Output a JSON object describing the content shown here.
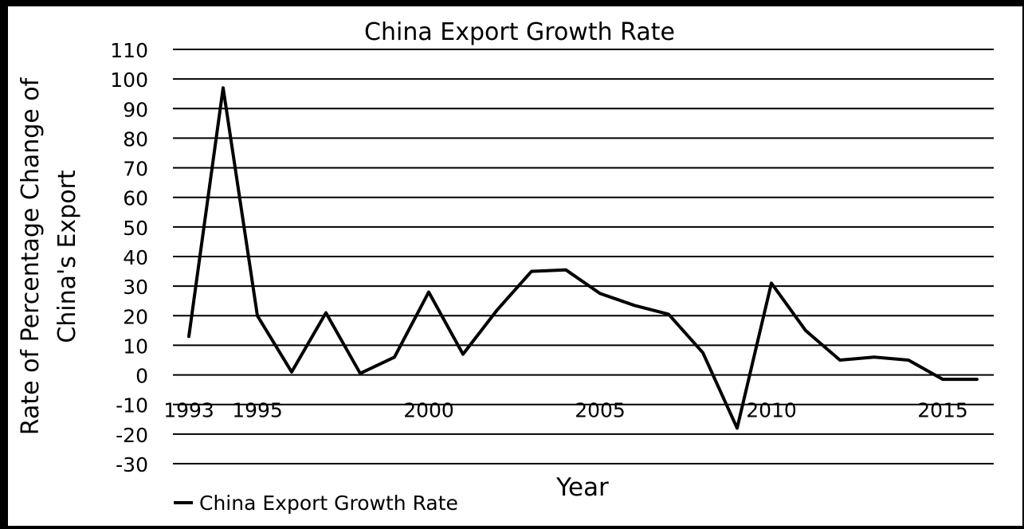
{
  "chart_data": {
    "type": "line",
    "title": "China Export Growth Rate",
    "xlabel": "Year",
    "ylabel_line1": "Rate of Percentage Change of",
    "ylabel_line2": "China's Export",
    "ylim": [
      -30,
      110
    ],
    "y_ticks": [
      110,
      100,
      90,
      80,
      70,
      60,
      50,
      40,
      30,
      20,
      10,
      0,
      -10,
      -20,
      -30
    ],
    "x_tick_labels": [
      {
        "year": 1993,
        "label": "1993"
      },
      {
        "year": 1995,
        "label": "1995"
      },
      {
        "year": 2000,
        "label": "2000"
      },
      {
        "year": 2005,
        "label": "2005"
      },
      {
        "year": 2010,
        "label": "2010"
      },
      {
        "year": 2015,
        "label": "2015"
      }
    ],
    "grid": true,
    "legend_position": "bottom-left",
    "line_color": "#000000",
    "series": [
      {
        "name": "China Export Growth Rate",
        "x": [
          1993,
          1994,
          1995,
          1996,
          1997,
          1998,
          1999,
          2000,
          2001,
          2002,
          2003,
          2004,
          2005,
          2006,
          2007,
          2008,
          2009,
          2010,
          2011,
          2012,
          2013,
          2014,
          2015,
          2016
        ],
        "values": [
          13,
          97,
          20,
          1,
          21,
          0.5,
          6,
          28,
          7,
          22,
          35,
          35.5,
          27.5,
          23.5,
          20.5,
          7.5,
          -18,
          31,
          15,
          5,
          6,
          5,
          -1.5,
          -1.5
        ]
      }
    ]
  }
}
